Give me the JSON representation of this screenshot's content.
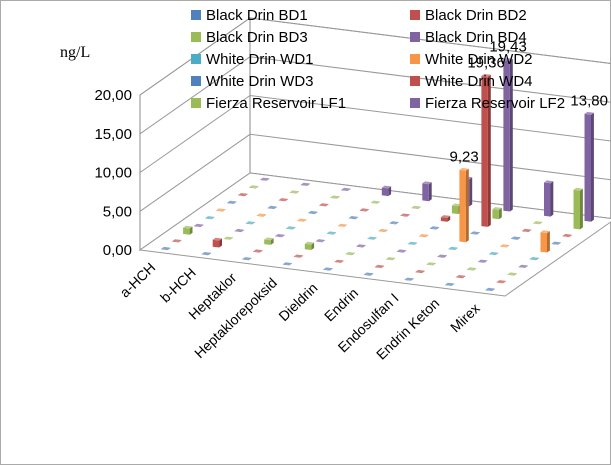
{
  "chart_data": {
    "type": "bar",
    "variant": "3d-column",
    "ylabel": "ng/L",
    "ylim": [
      0,
      20
    ],
    "yticks": [
      "0,00",
      "5,00",
      "10,00",
      "15,00",
      "20,00"
    ],
    "grid": true,
    "legend_position": "top-right",
    "categories": [
      "a-HCH",
      "b-HCH",
      "Heptaklor",
      "Heptaklorepoksid",
      "Dieldrin",
      "Endrin",
      "Endosulfan I",
      "Endrin Keton",
      "Mirex"
    ],
    "series": [
      {
        "name": "Black Drin BD1",
        "color": "#4F81BD",
        "values": [
          0.05,
          0.05,
          0.05,
          0.05,
          0.05,
          0.05,
          0.05,
          0.05,
          0.05
        ]
      },
      {
        "name": "Black Drin BD2",
        "color": "#C0504D",
        "values": [
          0.05,
          0.9,
          0.05,
          0.05,
          0.05,
          0.05,
          0.05,
          0.05,
          0.05
        ]
      },
      {
        "name": "Black Drin BD3",
        "color": "#9BBB59",
        "values": [
          0.8,
          0.05,
          0.6,
          0.7,
          0.05,
          0.05,
          0.05,
          0.05,
          0.05
        ]
      },
      {
        "name": "Black Drin BD4",
        "color": "#8064A2",
        "values": [
          0.05,
          0.05,
          0.05,
          0.05,
          0.05,
          0.05,
          0.05,
          0.05,
          0.05
        ]
      },
      {
        "name": "White Drin WD1",
        "color": "#4BACC6",
        "values": [
          0.05,
          0.05,
          0.05,
          0.05,
          0.05,
          0.05,
          0.05,
          0.05,
          0.05
        ]
      },
      {
        "name": "White Drin WD2",
        "color": "#F79646",
        "values": [
          0.05,
          0.05,
          0.05,
          0.05,
          0.05,
          0.05,
          9.23,
          0.05,
          2.5
        ]
      },
      {
        "name": "White Drin WD3",
        "color": "#4F81BD",
        "values": [
          0.05,
          0.05,
          0.05,
          0.05,
          0.05,
          0.05,
          0.05,
          0.05,
          0.05
        ]
      },
      {
        "name": "White Drin WD4",
        "color": "#C0504D",
        "values": [
          0.05,
          0.05,
          0.05,
          0.05,
          0.05,
          0.5,
          19.36,
          0.05,
          0.05
        ]
      },
      {
        "name": "Fierza Reservoir LF1",
        "color": "#9BBB59",
        "values": [
          0.05,
          0.05,
          0.05,
          0.05,
          0.05,
          1.0,
          1.2,
          0.05,
          5.0
        ]
      },
      {
        "name": "Fierza Reservoir LF2",
        "color": "#8064A2",
        "values": [
          0.05,
          0.05,
          0.05,
          1.0,
          2.2,
          3.5,
          19.43,
          4.3,
          13.8
        ]
      }
    ],
    "data_labels": [
      {
        "category_index": 6,
        "series_index": 5,
        "text": "9,23"
      },
      {
        "category_index": 6,
        "series_index": 7,
        "text": "19,36"
      },
      {
        "category_index": 6,
        "series_index": 9,
        "text": "19,43"
      },
      {
        "category_index": 8,
        "series_index": 9,
        "text": "13,80"
      }
    ]
  }
}
